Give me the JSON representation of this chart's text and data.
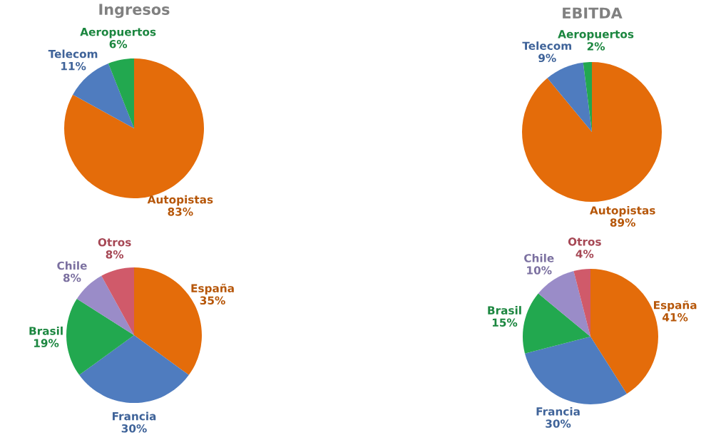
{
  "chart_data": [
    {
      "type": "pie",
      "title": "Ingresos",
      "categories": [
        "Autopistas",
        "Telecom",
        "Aeropuertos"
      ],
      "values": [
        83,
        11,
        6
      ],
      "colors": [
        "#e46c0a",
        "#4f7cbf",
        "#22a84f"
      ],
      "value_labels": [
        "83%",
        "11%",
        "6%"
      ]
    },
    {
      "type": "pie",
      "title": "EBITDA",
      "categories": [
        "Autopistas",
        "Telecom",
        "Aeropuertos"
      ],
      "values": [
        89,
        9,
        2
      ],
      "colors": [
        "#e46c0a",
        "#4f7cbf",
        "#22a84f"
      ],
      "value_labels": [
        "89%",
        "9%",
        "2%"
      ]
    },
    {
      "type": "pie",
      "categories": [
        "España",
        "Francia",
        "Brasil",
        "Chile",
        "Otros"
      ],
      "values": [
        35,
        30,
        19,
        8,
        8
      ],
      "colors": [
        "#e46c0a",
        "#4f7cbf",
        "#22a84f",
        "#9a8cc8",
        "#d05a6a"
      ],
      "value_labels": [
        "35%",
        "30%",
        "19%",
        "8%",
        "8%"
      ]
    },
    {
      "type": "pie",
      "categories": [
        "España",
        "Francia",
        "Brasil",
        "Chile",
        "Otros"
      ],
      "values": [
        41,
        30,
        15,
        10,
        4
      ],
      "colors": [
        "#e46c0a",
        "#4f7cbf",
        "#22a84f",
        "#9a8cc8",
        "#d05a6a"
      ],
      "value_labels": [
        "41%",
        "30%",
        "15%",
        "10%",
        "4%"
      ]
    }
  ]
}
